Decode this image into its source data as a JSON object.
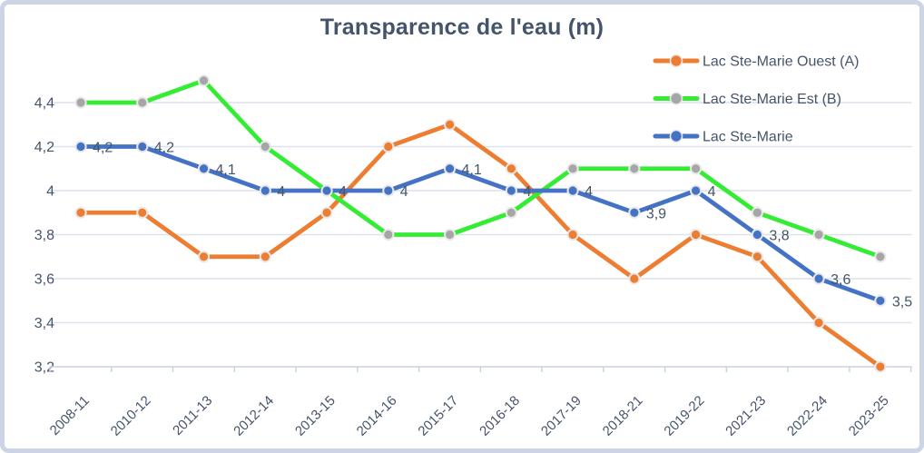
{
  "style": {
    "title_color": "#44546A",
    "text_color": "#44546A",
    "grid_color": "#DDE1EB",
    "axis_color": "#C9D1E0",
    "border_color": "#CCD4E6",
    "background": "#FFFFFF",
    "marker_outline": "#E9E9E9"
  },
  "chart_data": {
    "type": "line",
    "title": "Transparence de l'eau (m)",
    "xlabel": "",
    "ylabel": "",
    "grid": true,
    "legend_position": "top-right",
    "categories": [
      "2008-11",
      "2010-12",
      "2011-13",
      "2012-14",
      "2013-15",
      "2014-16",
      "2015-17",
      "2016-18",
      "2017-19",
      "2018-21",
      "2019-22",
      "2021-23",
      "2022-24",
      "2023-25"
    ],
    "series": [
      {
        "name": "Lac Ste-Marie Ouest (A)",
        "color": "#ED7D31",
        "marker_color": "#ED7D31",
        "values": [
          3.9,
          3.9,
          3.7,
          3.7,
          3.9,
          4.2,
          4.3,
          4.1,
          3.8,
          3.6,
          3.8,
          3.7,
          3.4,
          3.2
        ],
        "labels": null
      },
      {
        "name": "Lac Ste-Marie Est (B)",
        "color": "#35EC35",
        "marker_color": "#A6A6A6",
        "values": [
          4.4,
          4.4,
          4.5,
          4.2,
          4.0,
          3.8,
          3.8,
          3.9,
          4.1,
          4.1,
          4.1,
          3.9,
          3.8,
          3.7
        ],
        "labels": null
      },
      {
        "name": "Lac Ste-Marie",
        "color": "#4472C4",
        "marker_color": "#4472C4",
        "values": [
          4.2,
          4.2,
          4.1,
          4.0,
          4.0,
          4.0,
          4.1,
          4.0,
          4.0,
          3.9,
          4.0,
          3.8,
          3.6,
          3.5
        ],
        "labels": [
          "4,2",
          "4,2",
          "4,1",
          "4",
          "4",
          "4",
          "4,1",
          "4",
          "4",
          "3,9",
          "4",
          "3,8",
          "3,6",
          "3,5"
        ]
      }
    ],
    "y_axis": {
      "min": 3.2,
      "max": 4.4,
      "step": 0.2,
      "ticks": [
        {
          "value": 4.4,
          "label": "4,4"
        },
        {
          "value": 4.2,
          "label": "4,2"
        },
        {
          "value": 4.0,
          "label": "4"
        },
        {
          "value": 3.8,
          "label": "3,8"
        },
        {
          "value": 3.6,
          "label": "3,6"
        },
        {
          "value": 3.4,
          "label": "3,4"
        },
        {
          "value": 3.2,
          "label": "3,2"
        }
      ],
      "ylim": [
        3.2,
        4.4
      ]
    }
  }
}
